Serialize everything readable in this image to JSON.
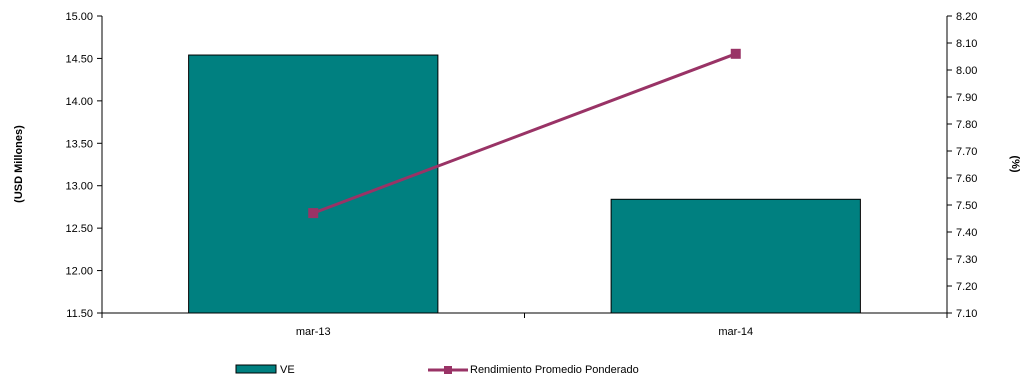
{
  "chart_data": {
    "type": "bar",
    "categories": [
      "mar-13",
      "mar-14"
    ],
    "series": [
      {
        "name": "VE",
        "type": "bar",
        "axis": "left",
        "color": "#008080",
        "values": [
          14.54,
          12.84
        ]
      },
      {
        "name": "Rendimiento Promedio Ponderado",
        "type": "line",
        "axis": "right",
        "color": "#993366",
        "marker": "square",
        "values": [
          7.47,
          8.06
        ]
      }
    ],
    "ylabel_left": "(USD Millones)",
    "ylabel_right": "(%)",
    "ylim_left": [
      11.5,
      15.0
    ],
    "ylim_right": [
      7.1,
      8.2
    ],
    "yticks_left": [
      "11.50",
      "12.00",
      "12.50",
      "13.00",
      "13.50",
      "14.00",
      "14.50",
      "15.00"
    ],
    "yticks_right": [
      "7.10",
      "7.20",
      "7.30",
      "7.40",
      "7.50",
      "7.60",
      "7.70",
      "7.80",
      "7.90",
      "8.00",
      "8.10",
      "8.20"
    ],
    "grid": false,
    "legend_position": "bottom"
  }
}
